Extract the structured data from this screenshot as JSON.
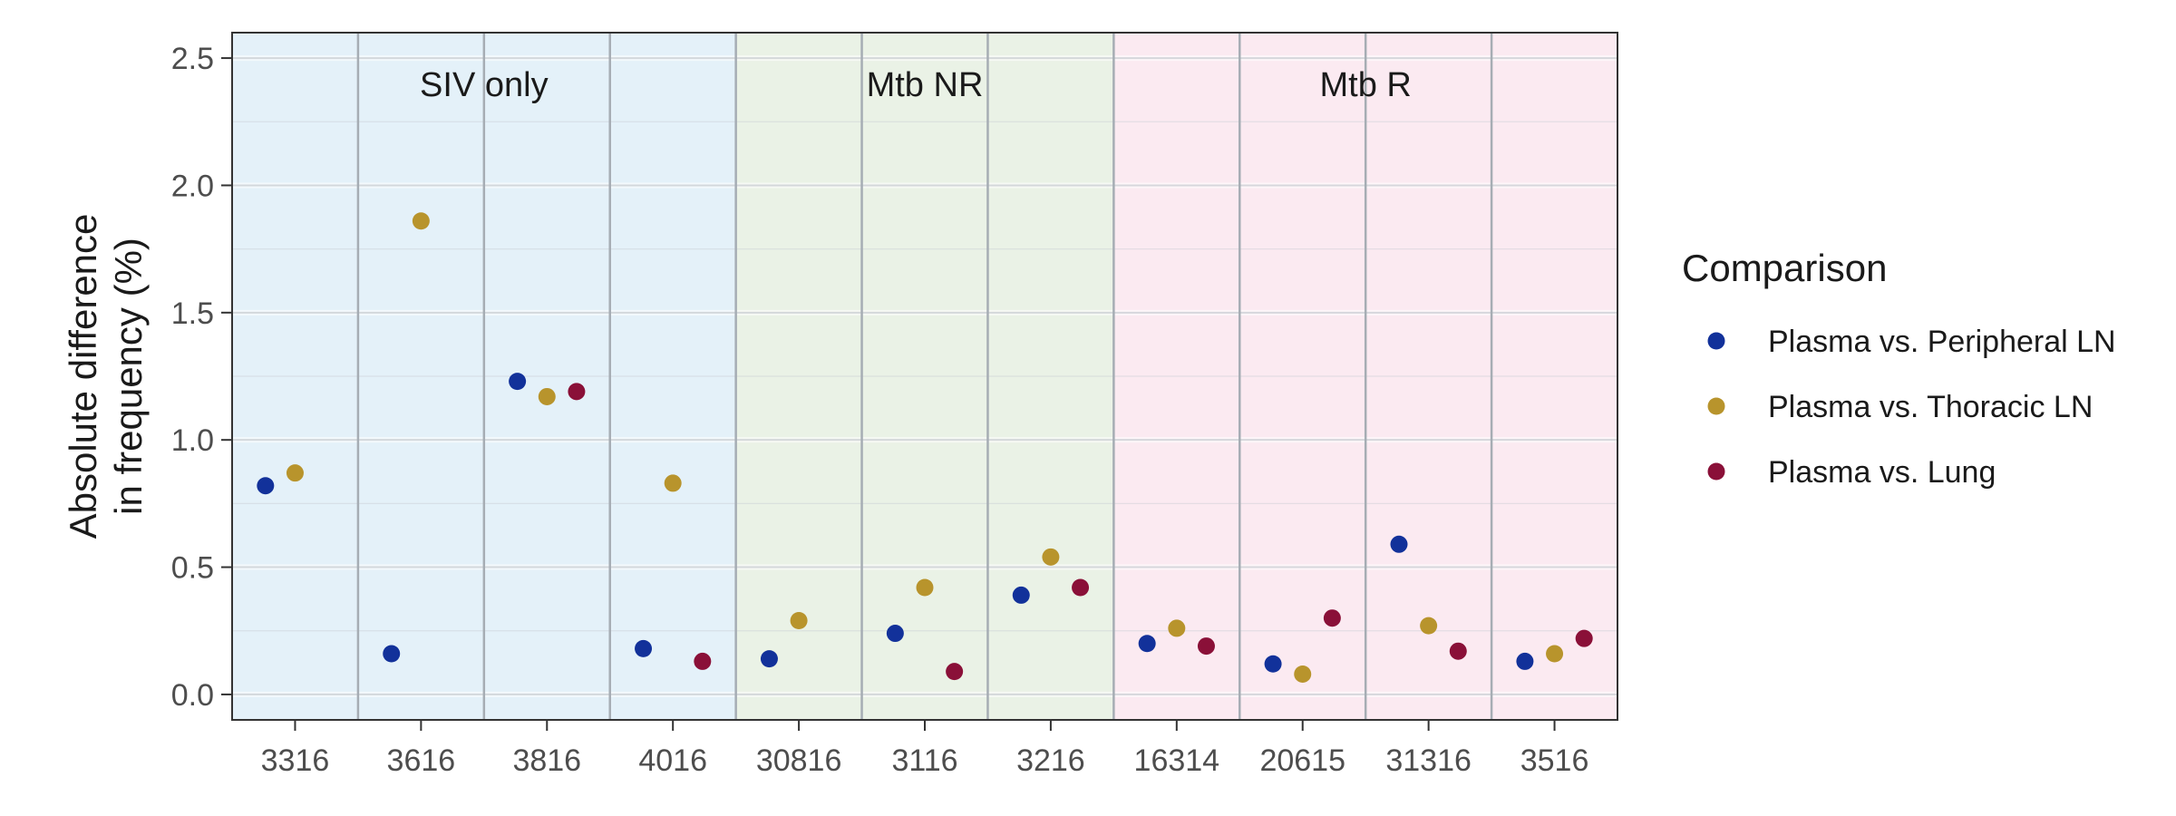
{
  "chart_data": {
    "type": "scatter",
    "ylabel_lines": [
      "Absolute difference",
      "in frequency (%)"
    ],
    "xlabel": "",
    "ylim": [
      -0.1,
      2.6
    ],
    "yticks": [
      0.0,
      0.5,
      1.0,
      1.5,
      2.0,
      2.5
    ],
    "ytick_labels": [
      "0.0",
      "0.5",
      "1.0",
      "1.5",
      "2.0",
      "2.5"
    ],
    "categories": [
      "3316",
      "3616",
      "3816",
      "4016",
      "30816",
      "3116",
      "3216",
      "16314",
      "20615",
      "31316",
      "3516"
    ],
    "groups": [
      {
        "name": "SIV only",
        "categories": [
          "3316",
          "3616",
          "3816",
          "4016"
        ],
        "color": "#e4f1f9"
      },
      {
        "name": "Mtb NR",
        "categories": [
          "30816",
          "3116",
          "3216"
        ],
        "color": "#eaf2e6"
      },
      {
        "name": "Mtb R",
        "categories": [
          "16314",
          "20615",
          "31316",
          "3516"
        ],
        "color": "#fbeaf1"
      }
    ],
    "series": [
      {
        "name": "Plasma vs. Peripheral LN",
        "color": "#12319a",
        "values": [
          0.82,
          0.16,
          1.23,
          0.18,
          0.14,
          0.24,
          0.39,
          0.2,
          0.12,
          0.59,
          0.13
        ]
      },
      {
        "name": "Plasma vs. Thoracic LN",
        "color": "#b8942c",
        "values": [
          0.87,
          1.86,
          1.17,
          0.83,
          0.29,
          0.42,
          0.54,
          0.26,
          0.08,
          0.27,
          0.16
        ]
      },
      {
        "name": "Plasma vs. Lung",
        "color": "#8a1038",
        "values": [
          null,
          null,
          1.19,
          0.13,
          null,
          0.09,
          0.42,
          0.19,
          0.3,
          0.17,
          0.22
        ]
      }
    ],
    "legend": {
      "title": "Comparison",
      "position": "right"
    },
    "grid": true
  }
}
